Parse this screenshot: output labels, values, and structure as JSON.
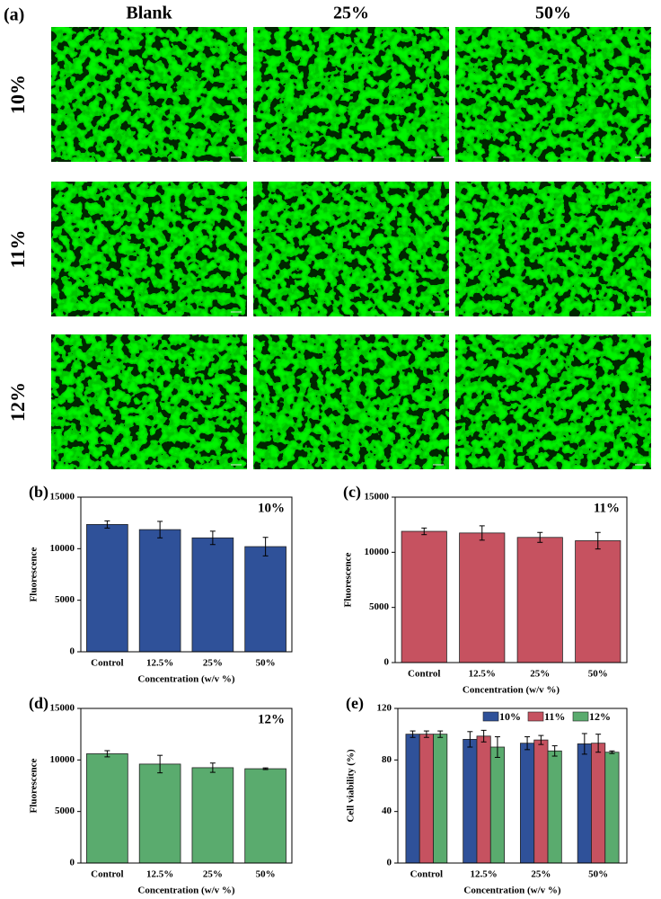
{
  "panel_a": {
    "label": "(a)",
    "columns": [
      "Blank",
      "25%",
      "50%"
    ],
    "rows": [
      "10%",
      "11%",
      "12%"
    ]
  },
  "chart_data": [
    {
      "type": "bar",
      "panel_label": "(b)",
      "annotation": "10%",
      "ylabel": "Fluorescence",
      "xlabel": "Concentration (w/v %)",
      "categories": [
        "Control",
        "12.5%",
        "25%",
        "50%"
      ],
      "series": [
        {
          "color": "#2f5199",
          "values": [
            12350,
            11850,
            11050,
            10200
          ],
          "errors": [
            350,
            800,
            650,
            900
          ]
        }
      ],
      "ylim": [
        0,
        15000
      ],
      "yticks": [
        0,
        5000,
        10000,
        15000
      ]
    },
    {
      "type": "bar",
      "panel_label": "(c)",
      "annotation": "11%",
      "ylabel": "Fluorescence",
      "xlabel": "Concentration (w/v %)",
      "categories": [
        "Control",
        "12.5%",
        "25%",
        "50%"
      ],
      "series": [
        {
          "color": "#c65260",
          "values": [
            11900,
            11750,
            11350,
            11050
          ],
          "errors": [
            300,
            650,
            450,
            750
          ]
        }
      ],
      "ylim": [
        0,
        15000
      ],
      "yticks": [
        0,
        5000,
        10000,
        15000
      ]
    },
    {
      "type": "bar",
      "panel_label": "(d)",
      "annotation": "12%",
      "ylabel": "Fluorescence",
      "xlabel": "Concentration (w/v %)",
      "categories": [
        "Control",
        "12.5%",
        "25%",
        "50%"
      ],
      "series": [
        {
          "color": "#5aab6e",
          "values": [
            10600,
            9600,
            9250,
            9150
          ],
          "errors": [
            300,
            850,
            450,
            80
          ]
        }
      ],
      "ylim": [
        0,
        15000
      ],
      "yticks": [
        0,
        5000,
        10000,
        15000
      ]
    },
    {
      "type": "bar",
      "panel_label": "(e)",
      "ylabel": "Cell viability (%)",
      "xlabel": "Concentration (w/v %)",
      "categories": [
        "Control",
        "12.5%",
        "25%",
        "50%"
      ],
      "series": [
        {
          "name": "10%",
          "color": "#2f5199",
          "values": [
            100,
            96,
            93,
            92.5
          ],
          "errors": [
            2.5,
            6,
            5,
            8
          ]
        },
        {
          "name": "11%",
          "color": "#c65260",
          "values": [
            100,
            98.5,
            95.5,
            93
          ],
          "errors": [
            2.5,
            4.5,
            3.5,
            7
          ]
        },
        {
          "name": "12%",
          "color": "#5aab6e",
          "values": [
            100,
            90,
            87,
            86
          ],
          "errors": [
            2.5,
            8,
            4,
            1
          ]
        }
      ],
      "ylim": [
        0,
        120
      ],
      "yticks": [
        0,
        40,
        80,
        120
      ],
      "legend": "top"
    }
  ]
}
